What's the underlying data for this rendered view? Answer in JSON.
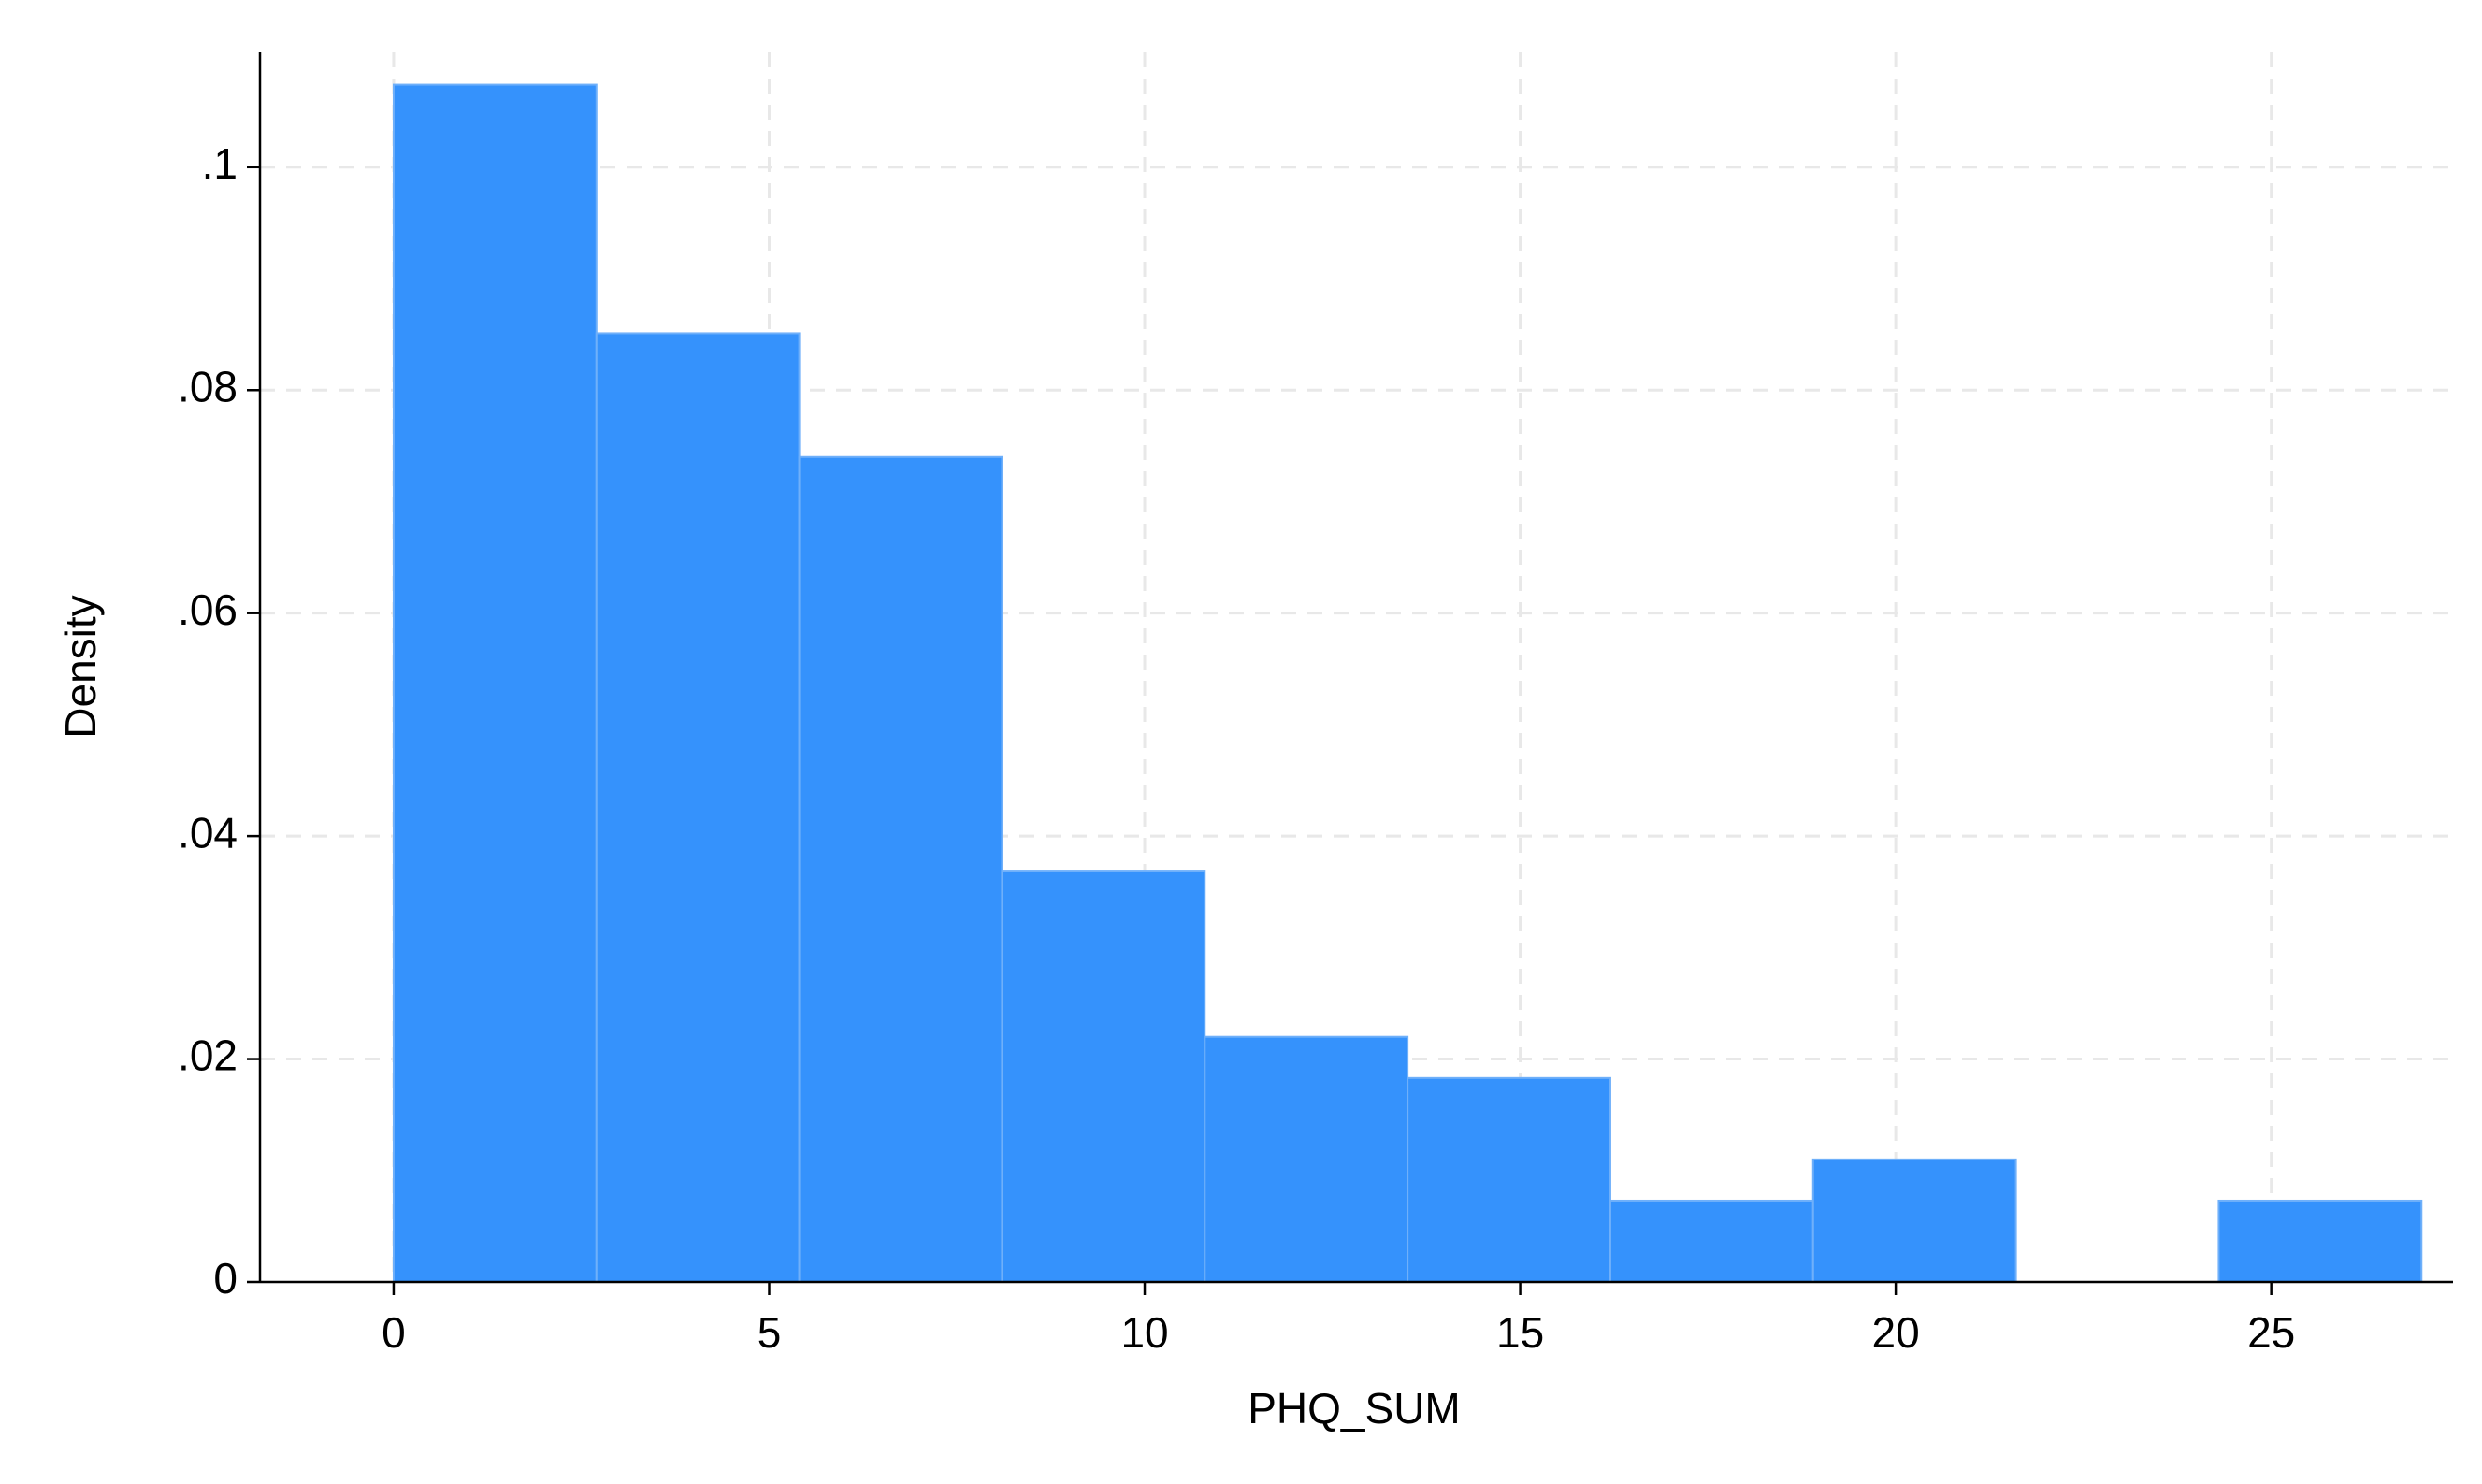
{
  "chart_data": {
    "type": "histogram",
    "x_label": "PHQ_SUM",
    "y_label": "Density",
    "bins": [
      0,
      2.7,
      5.4,
      8.1,
      10.8,
      13.5,
      16.2,
      18.9,
      21.6,
      24.3,
      27
    ],
    "values": [
      0.1074,
      0.0851,
      0.074,
      0.0369,
      0.022,
      0.0183,
      0.0073,
      0.011,
      0,
      0.0073
    ],
    "color": "#3592fc",
    "edge_color": "#6fb0fa",
    "xlim": [
      -1.78,
      27.42
    ],
    "xticks": [
      0,
      5,
      10,
      15,
      20,
      25
    ],
    "ylim": [
      0,
      0.1103
    ],
    "yticks": [
      0,
      {
        "value": 0.02,
        "label": ".02"
      },
      {
        "value": 0.04,
        "label": ".04"
      },
      {
        "value": 0.06,
        "label": ".06"
      },
      {
        "value": 0.08,
        "label": ".08"
      },
      {
        "value": 0.1,
        "label": ".1"
      }
    ],
    "grid": true
  }
}
